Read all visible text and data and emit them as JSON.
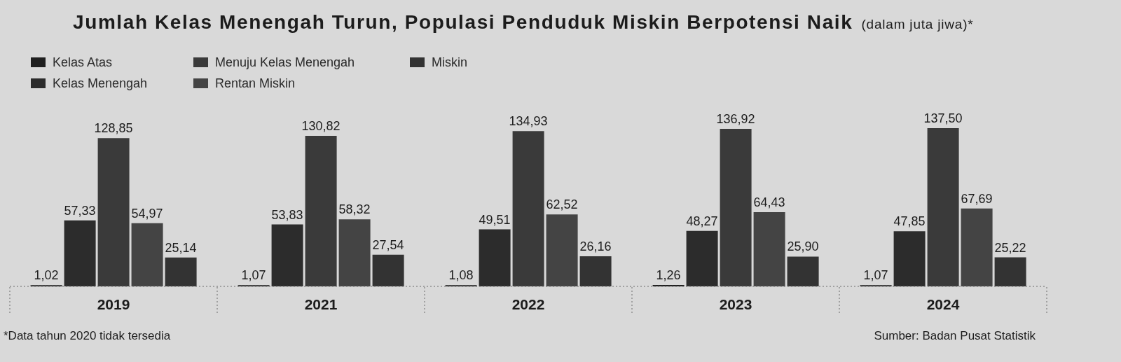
{
  "chart_data": {
    "type": "bar",
    "title": "Jumlah Kelas Menengah Turun, Populasi Penduduk Miskin Berpotensi Naik",
    "subtitle": "(dalam juta jiwa)*",
    "categories": [
      "2019",
      "2021",
      "2022",
      "2023",
      "2024"
    ],
    "series": [
      {
        "name": "Kelas Atas",
        "color": "#1f1f1f",
        "values": [
          1.02,
          1.07,
          1.08,
          1.26,
          1.07
        ],
        "value_labels": [
          "1,02",
          "1,07",
          "1,08",
          "1,26",
          "1,07"
        ]
      },
      {
        "name": "Kelas Menengah",
        "color": "#2c2c2c",
        "values": [
          57.33,
          53.83,
          49.51,
          48.27,
          47.85
        ],
        "value_labels": [
          "57,33",
          "53,83",
          "49,51",
          "48,27",
          "47,85"
        ]
      },
      {
        "name": "Menuju Kelas Menengah",
        "color": "#3a3a3a",
        "values": [
          128.85,
          130.82,
          134.93,
          136.92,
          137.5
        ],
        "value_labels": [
          "128,85",
          "130,82",
          "134,93",
          "136,92",
          "137,50"
        ]
      },
      {
        "name": "Rentan Miskin",
        "color": "#444444",
        "values": [
          54.97,
          58.32,
          62.52,
          64.43,
          67.69
        ],
        "value_labels": [
          "54,97",
          "58,32",
          "62,52",
          "64,43",
          "67,69"
        ]
      },
      {
        "name": "Miskin",
        "color": "#333333",
        "values": [
          25.14,
          27.54,
          26.16,
          25.9,
          25.22
        ],
        "value_labels": [
          "25,14",
          "27,54",
          "26,16",
          "25,90",
          "25,22"
        ]
      }
    ],
    "legend": "top left",
    "annotations": [
      "*Data tahun 2020 tidak tersedia",
      "Sumber: Badan Pusat Statistik"
    ]
  }
}
